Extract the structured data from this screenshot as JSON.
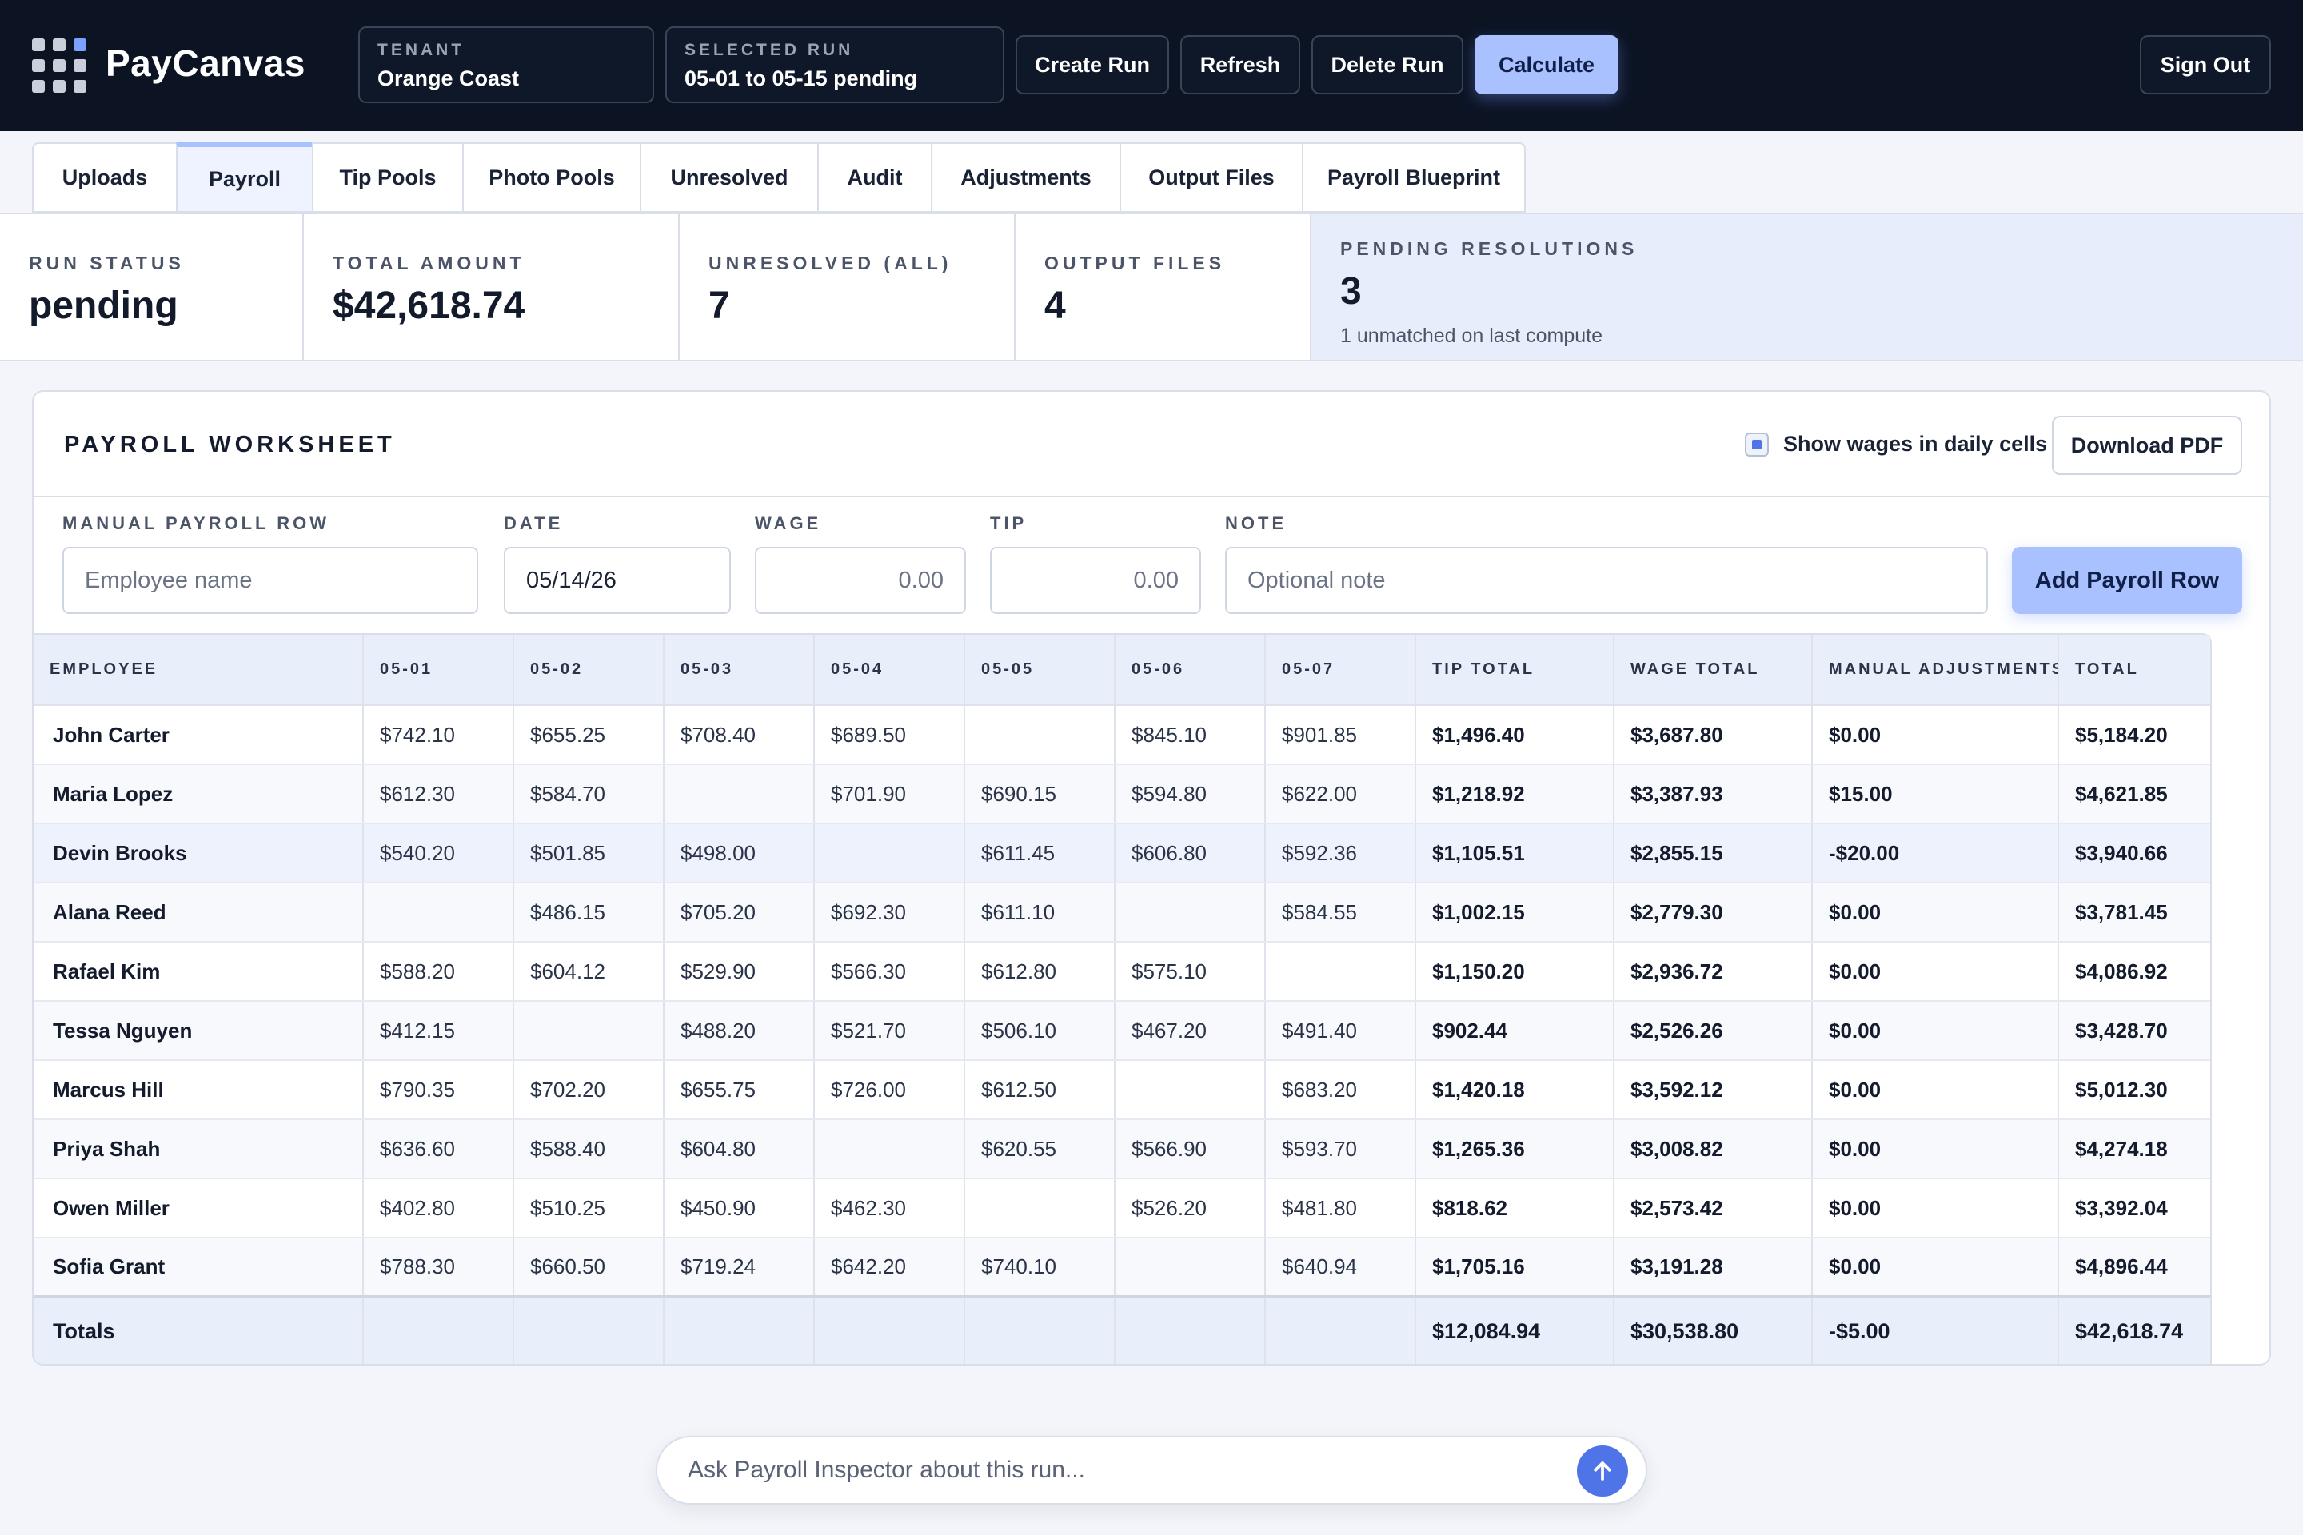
{
  "app": {
    "name": "PayCanvas"
  },
  "header": {
    "tenant": {
      "label": "TENANT",
      "value": "Orange Coast"
    },
    "selected_run": {
      "label": "SELECTED RUN",
      "value": "05-01 to 05-15 pending"
    },
    "buttons": {
      "create_run": "Create Run",
      "refresh": "Refresh",
      "delete_run": "Delete Run",
      "calculate": "Calculate",
      "sign_out": "Sign Out"
    }
  },
  "tabs": [
    {
      "label": "Uploads",
      "active": false
    },
    {
      "label": "Payroll",
      "active": true
    },
    {
      "label": "Tip Pools",
      "active": false
    },
    {
      "label": "Photo Pools",
      "active": false
    },
    {
      "label": "Unresolved",
      "active": false
    },
    {
      "label": "Audit",
      "active": false
    },
    {
      "label": "Adjustments",
      "active": false
    },
    {
      "label": "Output Files",
      "active": false
    },
    {
      "label": "Payroll Blueprint",
      "active": false
    }
  ],
  "stats": {
    "run_status": {
      "label": "RUN STATUS",
      "value": "pending"
    },
    "total_amount": {
      "label": "TOTAL AMOUNT",
      "value": "$42,618.74"
    },
    "unresolved_all": {
      "label": "UNRESOLVED (ALL)",
      "value": "7"
    },
    "output_files": {
      "label": "OUTPUT FILES",
      "value": "4"
    },
    "pending_resolutions": {
      "label": "PENDING RESOLUTIONS",
      "value": "3",
      "sub": "1 unmatched on last compute"
    }
  },
  "worksheet": {
    "title": "PAYROLL WORKSHEET",
    "show_wages_label": "Show wages in daily cells",
    "show_wages_checked": true,
    "download_pdf": "Download PDF",
    "form": {
      "employee": {
        "label": "MANUAL PAYROLL ROW",
        "placeholder": "Employee name"
      },
      "date": {
        "label": "DATE",
        "value": "05/14/26"
      },
      "wage": {
        "label": "WAGE",
        "value": "0.00"
      },
      "tip": {
        "label": "TIP",
        "value": "0.00"
      },
      "note": {
        "label": "NOTE",
        "placeholder": "Optional note"
      },
      "add_button": "Add Payroll Row"
    },
    "columns": [
      "EMPLOYEE",
      "05-01",
      "05-02",
      "05-03",
      "05-04",
      "05-05",
      "05-06",
      "05-07",
      "TIP TOTAL",
      "WAGE TOTAL",
      "MANUAL ADJUSTMENTS",
      "TOTAL"
    ],
    "rows": [
      [
        "John Carter",
        "$742.10",
        "$655.25",
        "$708.40",
        "$689.50",
        "",
        "$845.10",
        "$901.85",
        "$1,496.40",
        "$3,687.80",
        "$0.00",
        "$5,184.20"
      ],
      [
        "Maria Lopez",
        "$612.30",
        "$584.70",
        "",
        "$701.90",
        "$690.15",
        "$594.80",
        "$622.00",
        "$1,218.92",
        "$3,387.93",
        "$15.00",
        "$4,621.85"
      ],
      [
        "Devin Brooks",
        "$540.20",
        "$501.85",
        "$498.00",
        "",
        "$611.45",
        "$606.80",
        "$592.36",
        "$1,105.51",
        "$2,855.15",
        "-$20.00",
        "$3,940.66"
      ],
      [
        "Alana Reed",
        "",
        "$486.15",
        "$705.20",
        "$692.30",
        "$611.10",
        "",
        "$584.55",
        "$1,002.15",
        "$2,779.30",
        "$0.00",
        "$3,781.45"
      ],
      [
        "Rafael Kim",
        "$588.20",
        "$604.12",
        "$529.90",
        "$566.30",
        "$612.80",
        "$575.10",
        "",
        "$1,150.20",
        "$2,936.72",
        "$0.00",
        "$4,086.92"
      ],
      [
        "Tessa Nguyen",
        "$412.15",
        "",
        "$488.20",
        "$521.70",
        "$506.10",
        "$467.20",
        "$491.40",
        "$902.44",
        "$2,526.26",
        "$0.00",
        "$3,428.70"
      ],
      [
        "Marcus Hill",
        "$790.35",
        "$702.20",
        "$655.75",
        "$726.00",
        "$612.50",
        "",
        "$683.20",
        "$1,420.18",
        "$3,592.12",
        "$0.00",
        "$5,012.30"
      ],
      [
        "Priya Shah",
        "$636.60",
        "$588.40",
        "$604.80",
        "",
        "$620.55",
        "$566.90",
        "$593.70",
        "$1,265.36",
        "$3,008.82",
        "$0.00",
        "$4,274.18"
      ],
      [
        "Owen Miller",
        "$402.80",
        "$510.25",
        "$450.90",
        "$462.30",
        "",
        "$526.20",
        "$481.80",
        "$818.62",
        "$2,573.42",
        "$0.00",
        "$3,392.04"
      ],
      [
        "Sofia Grant",
        "$788.30",
        "$660.50",
        "$719.24",
        "$642.20",
        "$740.10",
        "",
        "$640.94",
        "$1,705.16",
        "$3,191.28",
        "$0.00",
        "$4,896.44"
      ]
    ],
    "highlighted_row": 2,
    "totals": [
      "Totals",
      "",
      "",
      "",
      "",
      "",
      "",
      "",
      "$12,084.94",
      "$30,538.80",
      "-$5.00",
      "$42,618.74"
    ]
  },
  "chat": {
    "placeholder": "Ask Payroll Inspector about this run..."
  },
  "colors": {
    "topbar": "#0c1424",
    "accent": "#a9c1ff",
    "send": "#4f74e8"
  },
  "icons": {
    "logo": "grid-logo-icon",
    "send": "arrow-up-icon"
  }
}
